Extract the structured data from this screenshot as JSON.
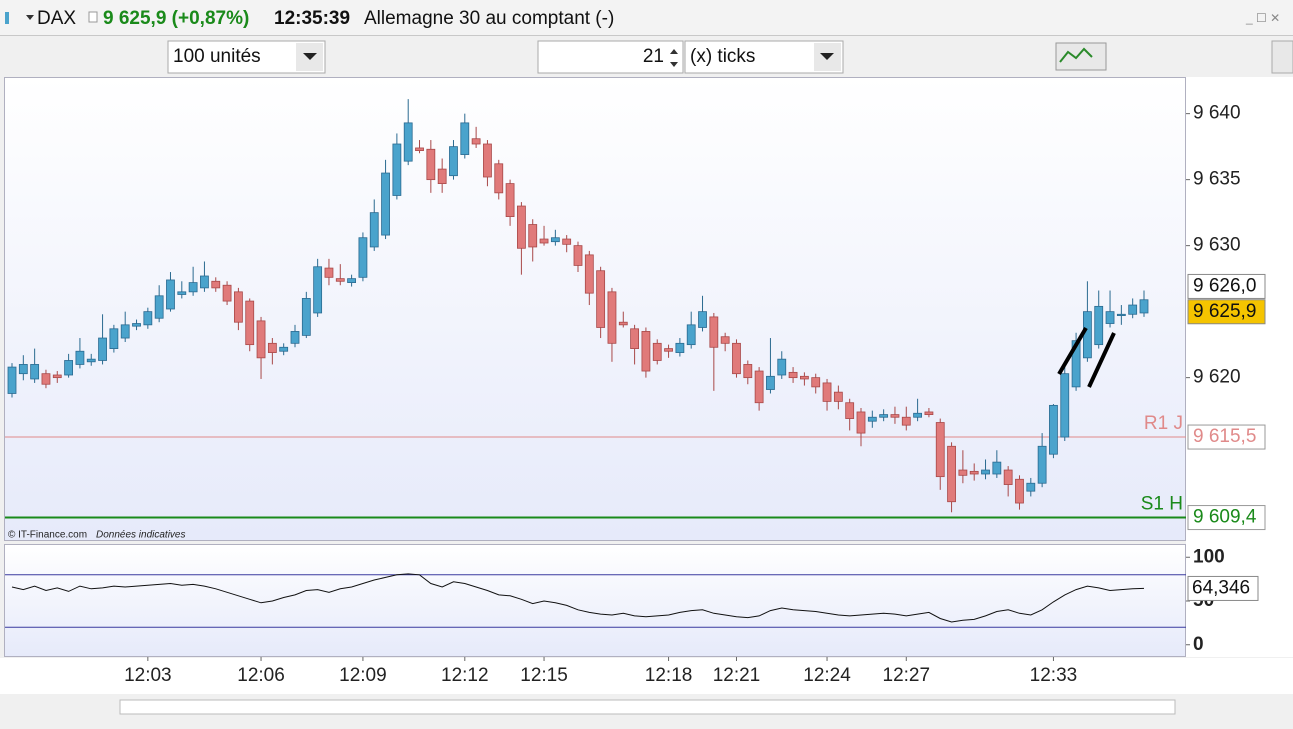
{
  "header": {
    "symbol": "DAX",
    "quote": "9 625,9 (+0,87%)",
    "time": "12:35:39",
    "name": "Allemagne 30 au comptant (-)"
  },
  "toolbar": {
    "quantity": "100 unités",
    "ticks_count": "21",
    "ticks_unit": "(x) ticks"
  },
  "chart_data": {
    "type": "candlestick",
    "up_color": "#4aa3cc",
    "up_edge": "#2a6a90",
    "down_color": "#e07a7a",
    "down_edge": "#a84848",
    "ylim": [
      9607.7,
      9642.7
    ],
    "yticks": [
      {
        "value": 9640,
        "label": "9 640"
      },
      {
        "value": 9635,
        "label": "9 635"
      },
      {
        "value": 9630,
        "label": "9 630"
      },
      {
        "value": 9620,
        "label": "9 620"
      }
    ],
    "categories": [
      null,
      null,
      null,
      null,
      null,
      null,
      null,
      null,
      null,
      null,
      null,
      null,
      "12:03",
      null,
      null,
      null,
      null,
      null,
      null,
      null,
      null,
      null,
      "12:06",
      null,
      null,
      null,
      null,
      null,
      null,
      null,
      null,
      "12:09",
      null,
      null,
      null,
      null,
      null,
      null,
      null,
      null,
      "12:12",
      null,
      null,
      null,
      null,
      null,
      null,
      "12:15",
      null,
      null,
      null,
      null,
      null,
      null,
      null,
      null,
      null,
      null,
      "12:18",
      null,
      null,
      null,
      null,
      null,
      "12:21",
      null,
      null,
      null,
      null,
      null,
      null,
      null,
      "12:24",
      null,
      null,
      null,
      null,
      null,
      null,
      "12:27",
      null,
      null,
      null,
      null,
      null,
      null,
      null,
      null,
      null,
      null,
      null,
      null,
      "12:33",
      null,
      null,
      null,
      null,
      null,
      null,
      null,
      null
    ],
    "candles": [
      [
        9618.8,
        9621.1,
        9618.5,
        9620.8
      ],
      [
        9620.3,
        9621.7,
        9619.8,
        9621.0
      ],
      [
        9619.9,
        9622.2,
        9619.6,
        9621.0
      ],
      [
        9620.3,
        9620.6,
        9619.2,
        9619.5
      ],
      [
        9620.2,
        9620.5,
        9619.6,
        9620.0
      ],
      [
        9620.2,
        9621.8,
        9620.0,
        9621.3
      ],
      [
        9621.0,
        9623.0,
        9620.7,
        9622.0
      ],
      [
        9621.2,
        9621.8,
        9620.9,
        9621.4
      ],
      [
        9621.3,
        9624.8,
        9621.0,
        9623.0
      ],
      [
        9622.2,
        9624.0,
        9621.9,
        9623.7
      ],
      [
        9623.0,
        9625.0,
        9622.7,
        9624.0
      ],
      [
        9623.9,
        9624.4,
        9623.6,
        9624.1
      ],
      [
        9624.0,
        9625.3,
        9623.7,
        9625.0
      ],
      [
        9624.5,
        9627.0,
        9624.2,
        9626.2
      ],
      [
        9625.2,
        9628.0,
        9625.0,
        9627.4
      ],
      [
        9626.3,
        9627.3,
        9626.0,
        9626.5
      ],
      [
        9626.5,
        9628.4,
        9626.2,
        9627.2
      ],
      [
        9626.8,
        9628.8,
        9626.5,
        9627.7
      ],
      [
        9627.3,
        9627.6,
        9626.5,
        9626.8
      ],
      [
        9627.0,
        9627.3,
        9625.5,
        9625.8
      ],
      [
        9626.5,
        9626.8,
        9623.6,
        9624.2
      ],
      [
        9625.8,
        9626.0,
        9622.0,
        9622.5
      ],
      [
        9624.3,
        9624.6,
        9619.9,
        9621.5
      ],
      [
        9622.6,
        9623.0,
        9621.0,
        9621.9
      ],
      [
        9622.0,
        9622.6,
        9621.7,
        9622.3
      ],
      [
        9622.6,
        9624.0,
        9622.3,
        9623.5
      ],
      [
        9623.2,
        9626.5,
        9623.0,
        9626.0
      ],
      [
        9624.9,
        9629.0,
        9624.6,
        9628.4
      ],
      [
        9628.3,
        9629.0,
        9627.0,
        9627.6
      ],
      [
        9627.5,
        9628.6,
        9627.0,
        9627.3
      ],
      [
        9627.2,
        9627.8,
        9626.9,
        9627.5
      ],
      [
        9627.6,
        9631.0,
        9627.3,
        9630.6
      ],
      [
        9629.9,
        9633.5,
        9629.6,
        9632.5
      ],
      [
        9630.8,
        9636.5,
        9630.5,
        9635.5
      ],
      [
        9633.8,
        9638.5,
        9633.5,
        9637.7
      ],
      [
        9636.4,
        9641.1,
        9636.1,
        9639.3
      ],
      [
        9637.4,
        9638.0,
        9637.0,
        9637.2
      ],
      [
        9637.3,
        9638.0,
        9634.0,
        9635.0
      ],
      [
        9635.8,
        9636.6,
        9634.0,
        9634.7
      ],
      [
        9635.3,
        9638.0,
        9635.0,
        9637.5
      ],
      [
        9636.9,
        9640.0,
        9636.6,
        9639.3
      ],
      [
        9638.1,
        9639.0,
        9637.4,
        9637.7
      ],
      [
        9637.7,
        9638.0,
        9634.5,
        9635.2
      ],
      [
        9636.2,
        9636.5,
        9633.5,
        9634.0
      ],
      [
        9634.7,
        9635.0,
        9631.5,
        9632.2
      ],
      [
        9633.0,
        9633.3,
        9627.8,
        9629.8
      ],
      [
        9631.6,
        9632.0,
        9628.8,
        9629.9
      ],
      [
        9630.5,
        9631.5,
        9630.0,
        9630.2
      ],
      [
        9630.3,
        9631.2,
        9630.0,
        9630.6
      ],
      [
        9630.5,
        9630.8,
        9629.5,
        9630.1
      ],
      [
        9630.0,
        9630.3,
        9628.0,
        9628.5
      ],
      [
        9629.3,
        9629.6,
        9625.5,
        9626.4
      ],
      [
        9628.1,
        9628.4,
        9623.0,
        9623.8
      ],
      [
        9626.5,
        9626.8,
        9621.2,
        9622.6
      ],
      [
        9624.2,
        9625.0,
        9623.8,
        9624.0
      ],
      [
        9623.7,
        9624.0,
        9621.0,
        9622.2
      ],
      [
        9623.5,
        9623.8,
        9620.0,
        9620.5
      ],
      [
        9622.6,
        9622.9,
        9621.0,
        9621.3
      ],
      [
        9622.2,
        9622.5,
        9621.5,
        9622.0
      ],
      [
        9621.9,
        9623.0,
        9621.6,
        9622.6
      ],
      [
        9622.5,
        9625.0,
        9622.2,
        9624.0
      ],
      [
        9623.8,
        9626.2,
        9623.5,
        9625.0
      ],
      [
        9624.6,
        9624.9,
        9619.0,
        9622.3
      ],
      [
        9623.1,
        9623.4,
        9622.0,
        9622.6
      ],
      [
        9622.6,
        9622.9,
        9620.0,
        9620.3
      ],
      [
        9621.0,
        9621.3,
        9619.5,
        9620.0
      ],
      [
        9620.5,
        9620.8,
        9617.5,
        9618.1
      ],
      [
        9619.1,
        9623.0,
        9618.8,
        9620.1
      ],
      [
        9620.2,
        9622.0,
        9619.9,
        9621.4
      ],
      [
        9620.4,
        9620.8,
        9619.6,
        9620.0
      ],
      [
        9620.1,
        9620.4,
        9619.4,
        9619.9
      ],
      [
        9620.0,
        9620.3,
        9618.8,
        9619.3
      ],
      [
        9619.6,
        9619.9,
        9617.5,
        9618.2
      ],
      [
        9618.9,
        9619.4,
        9617.6,
        9618.2
      ],
      [
        9618.1,
        9618.4,
        9616.0,
        9616.9
      ],
      [
        9617.4,
        9617.7,
        9614.8,
        9615.8
      ],
      [
        9616.7,
        9617.5,
        9616.2,
        9617.0
      ],
      [
        9617.0,
        9617.6,
        9616.7,
        9617.2
      ],
      [
        9617.2,
        9617.8,
        9616.5,
        9617.0
      ],
      [
        9617.0,
        9617.8,
        9616.0,
        9616.4
      ],
      [
        9617.0,
        9618.4,
        9616.7,
        9617.3
      ],
      [
        9617.4,
        9617.7,
        9617.0,
        9617.2
      ],
      [
        9616.6,
        9616.9,
        9611.5,
        9612.5
      ],
      [
        9614.8,
        9615.1,
        9609.8,
        9610.6
      ],
      [
        9613.0,
        9614.5,
        9612.0,
        9612.6
      ],
      [
        9612.9,
        9613.5,
        9612.2,
        9612.7
      ],
      [
        9612.7,
        9613.8,
        9612.3,
        9613.0
      ],
      [
        9612.7,
        9614.5,
        9612.4,
        9613.6
      ],
      [
        9613.0,
        9613.3,
        9611.0,
        9611.9
      ],
      [
        9612.3,
        9612.6,
        9610.0,
        9610.5
      ],
      [
        9611.4,
        9612.4,
        9611.0,
        9612.0
      ],
      [
        9612.0,
        9615.8,
        9611.7,
        9614.8
      ],
      [
        9614.2,
        9618.0,
        9613.9,
        9617.9
      ],
      [
        9615.5,
        9621.0,
        9615.2,
        9620.3
      ],
      [
        9619.3,
        9623.4,
        9619.0,
        9622.8
      ],
      [
        9621.5,
        9627.3,
        9621.2,
        9625.0
      ],
      [
        9622.5,
        9626.6,
        9622.2,
        9625.4
      ],
      [
        9624.1,
        9626.6,
        9623.8,
        9625.0
      ],
      [
        9624.7,
        9625.5,
        9624.0,
        9624.8
      ],
      [
        9624.8,
        9626.0,
        9624.5,
        9625.5
      ],
      [
        9624.9,
        9626.6,
        9624.6,
        9625.9
      ]
    ],
    "price_markers": [
      {
        "value": 9626.0,
        "label": "9 626,0",
        "background": "#ffffff"
      },
      {
        "value": 9625.9,
        "label": "9 625,9",
        "background": "#f5c400"
      }
    ],
    "levels": [
      {
        "name": "R1 J",
        "value": 9615.5,
        "label": "9 615,5",
        "color": "#e08a8a"
      },
      {
        "name": "S1 H",
        "value": 9609.4,
        "label": "9 609,4",
        "color": "#1a8a1a"
      }
    ],
    "oscillator": {
      "color": "#111111",
      "ylim": [
        -14,
        114
      ],
      "yticks": [
        100,
        50,
        0
      ],
      "bands": [
        80,
        20
      ],
      "band_color": "#3a3aa0",
      "last_label": "64,346",
      "values": [
        66,
        63,
        67,
        62,
        65,
        61,
        67,
        64,
        65,
        67,
        66,
        67,
        68,
        69,
        70,
        68,
        69,
        67,
        64,
        60,
        56,
        52,
        48,
        50,
        54,
        57,
        62,
        63,
        60,
        64,
        66,
        70,
        74,
        77,
        80,
        81,
        80,
        70,
        66,
        72,
        70,
        66,
        62,
        57,
        56,
        52,
        47,
        50,
        48,
        45,
        40,
        37,
        35,
        34,
        36,
        33,
        32,
        33,
        34,
        37,
        39,
        40,
        36,
        34,
        32,
        31,
        33,
        39,
        42,
        40,
        39,
        38,
        36,
        34,
        33,
        34,
        35,
        36,
        35,
        33,
        35,
        37,
        30,
        26,
        28,
        29,
        33,
        38,
        40,
        36,
        34,
        40,
        49,
        57,
        63,
        67,
        65,
        62,
        63,
        64,
        64.346
      ]
    }
  },
  "footer": {
    "source": "© IT-Finance.com",
    "note": "Données indicatives"
  }
}
